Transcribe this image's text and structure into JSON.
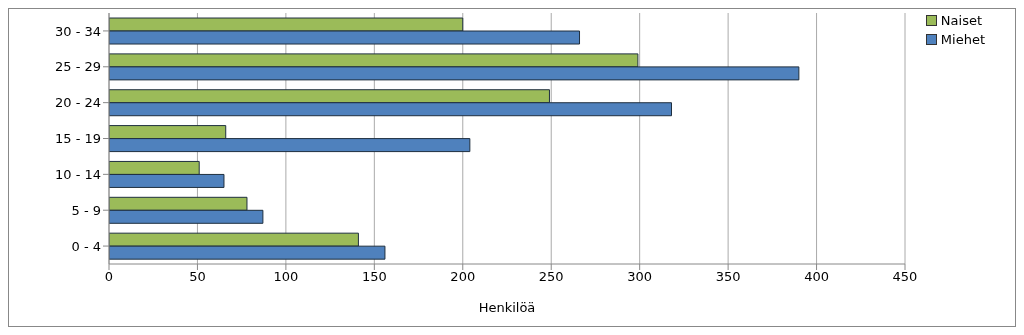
{
  "chart_data": {
    "type": "bar",
    "orientation": "horizontal",
    "xlabel": "Henkilöä",
    "categories": [
      "30 - 34",
      "25 - 29",
      "20 - 24",
      "15 - 19",
      "10 - 14",
      "5 - 9",
      "0 - 4"
    ],
    "series": [
      {
        "name": "Naiset",
        "color": "#9bbb59",
        "values": [
          200,
          299,
          249,
          66,
          51,
          78,
          141
        ]
      },
      {
        "name": "Miehet",
        "color": "#4f81bd",
        "values": [
          266,
          390,
          318,
          204,
          65,
          87,
          156
        ]
      }
    ],
    "xlim": [
      0,
      450
    ],
    "xticks": [
      0,
      50,
      100,
      150,
      200,
      250,
      300,
      350,
      400,
      450
    ],
    "grid": "x",
    "legend": "top right"
  }
}
